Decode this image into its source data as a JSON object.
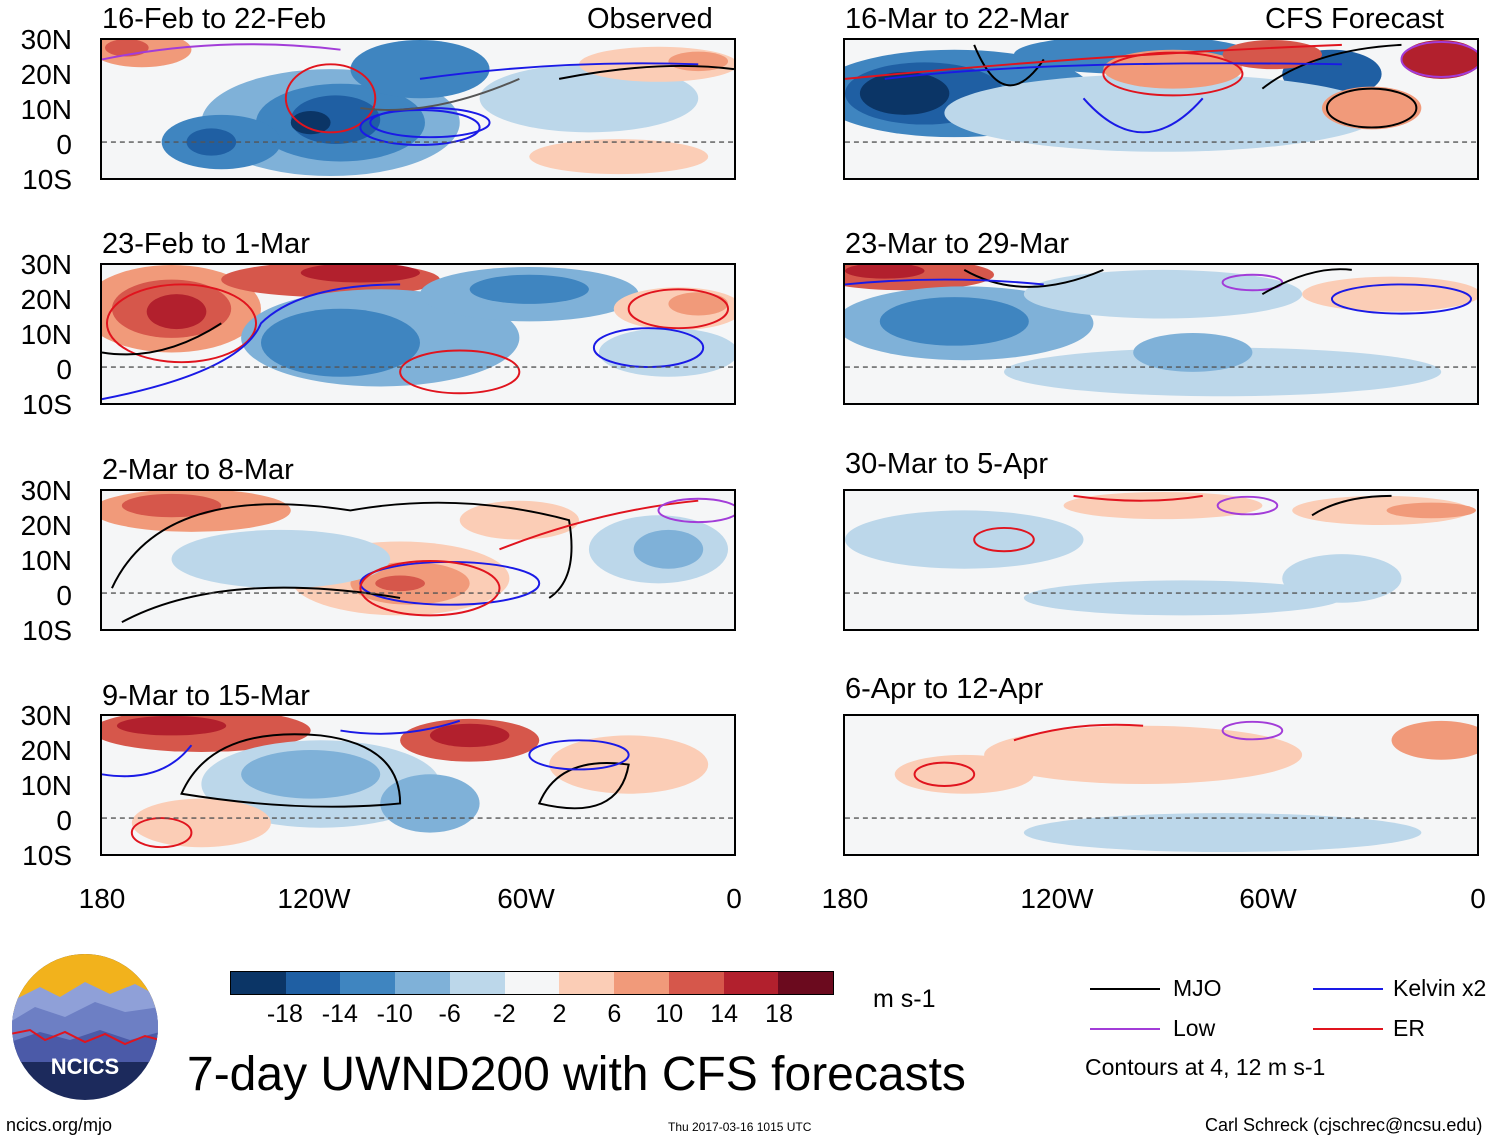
{
  "observed_label": "Observed",
  "forecast_label": "CFS Forecast",
  "panels_left": [
    {
      "title": "16-Feb to 22-Feb"
    },
    {
      "title": "23-Feb to 1-Mar"
    },
    {
      "title": "2-Mar to 8-Mar"
    },
    {
      "title": "9-Mar to 15-Mar"
    }
  ],
  "panels_right": [
    {
      "title": "16-Mar to 22-Mar"
    },
    {
      "title": "23-Mar to 29-Mar"
    },
    {
      "title": "30-Mar to 5-Apr"
    },
    {
      "title": "6-Apr to 12-Apr"
    }
  ],
  "lat_labels": [
    "30N",
    "20N",
    "10N",
    "0",
    "10S"
  ],
  "lon_labels": [
    "180",
    "120W",
    "60W",
    "0"
  ],
  "colorbar": {
    "labels": [
      "-18",
      "-14",
      "-10",
      "-6",
      "-2",
      "2",
      "6",
      "10",
      "14",
      "18"
    ],
    "colors": [
      "#0b3566",
      "#1f5fa3",
      "#3f85c0",
      "#7fb1d8",
      "#bcd7ea",
      "#f5f6f7",
      "#fbcdb6",
      "#f19a7a",
      "#d6574b",
      "#b2202d",
      "#6b0a1e"
    ],
    "units": "m s-1"
  },
  "legend": {
    "mjo": "MJO",
    "kelvin": "Kelvin x2",
    "low": "Low",
    "er": "ER",
    "contours": "Contours at 4, 12 m s-1",
    "colors": {
      "mjo": "#000000",
      "kelvin": "#1a1ae6",
      "low": "#a23cd8",
      "er": "#e0141e"
    }
  },
  "logo_text": "NCICS",
  "main_title": "7-day UWND200 with CFS forecasts",
  "footer": {
    "left": "ncics.org/mjo",
    "center": "Thu 2017-03-16 1015 UTC",
    "right": "Carl Schreck (cjschrec@ncsu.edu)"
  }
}
